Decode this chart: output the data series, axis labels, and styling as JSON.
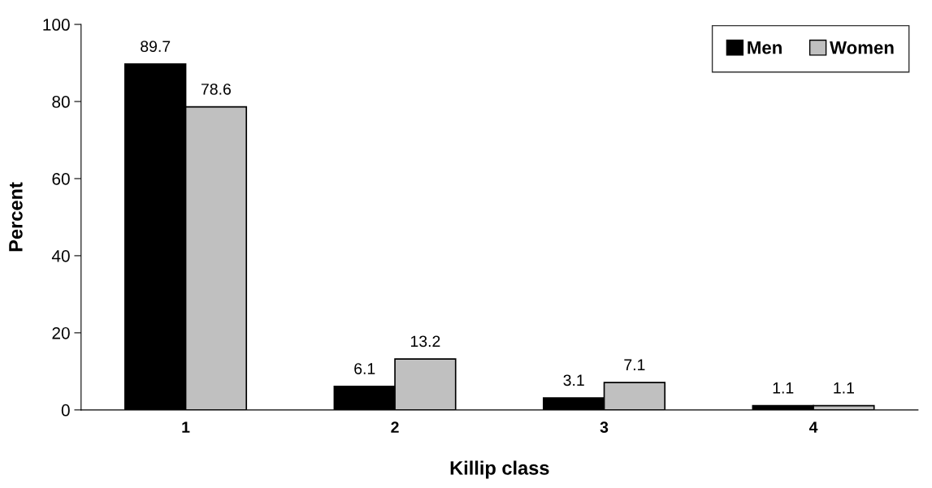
{
  "chart_data": {
    "type": "bar",
    "xlabel": "Killip class",
    "ylabel": "Percent",
    "categories": [
      "1",
      "2",
      "3",
      "4"
    ],
    "series": [
      {
        "name": "Men",
        "color": "#000000",
        "values": [
          89.7,
          6.1,
          3.1,
          1.1
        ]
      },
      {
        "name": "Women",
        "color": "#c0c0c0",
        "values": [
          78.6,
          13.2,
          7.1,
          1.1
        ]
      }
    ],
    "ylim": [
      0,
      100
    ],
    "yticks": [
      0,
      20,
      40,
      60,
      80,
      100
    ],
    "grid": false,
    "legend": "top right",
    "data_labels": true
  }
}
